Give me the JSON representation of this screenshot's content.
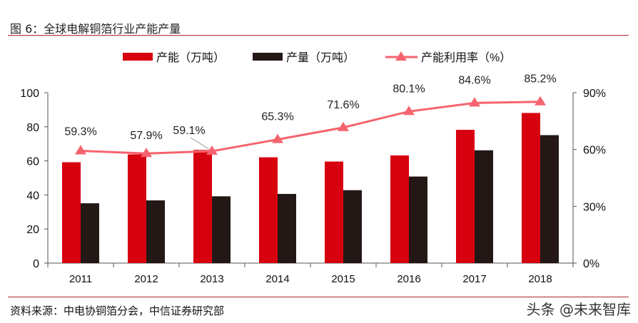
{
  "header": {
    "title": "图 6：全球电解铜箔行业产能产量"
  },
  "footer": {
    "source": "资料来源：中电协铜箔分会，中信证券研究部",
    "watermark": "头条 @未来智库"
  },
  "chart_data": {
    "type": "bar+line",
    "categories": [
      "2011",
      "2012",
      "2013",
      "2014",
      "2015",
      "2016",
      "2017",
      "2018"
    ],
    "series": [
      {
        "name": "产能（万吨）",
        "type": "bar",
        "axis": "left",
        "color": "#d7000f",
        "values": [
          59.2,
          63.8,
          66.4,
          62.1,
          59.6,
          63.2,
          78.2,
          88.1
        ]
      },
      {
        "name": "产量（万吨）",
        "type": "bar",
        "axis": "left",
        "color": "#231815",
        "values": [
          35.1,
          36.8,
          39.2,
          40.6,
          42.8,
          50.8,
          66.2,
          75.1
        ]
      },
      {
        "name": "产能利用率（%）",
        "type": "line",
        "axis": "right",
        "marker": "triangle",
        "color": "#f5646e",
        "values": [
          59.3,
          57.9,
          59.1,
          65.3,
          71.6,
          80.1,
          84.6,
          85.2
        ],
        "labels": [
          "59.3%",
          "57.9%",
          "59.1%",
          "65.3%",
          "71.6%",
          "80.1%",
          "84.6%",
          "85.2%"
        ]
      }
    ],
    "left_axis": {
      "ylim": [
        0,
        100
      ],
      "ticks": [
        "0",
        "20",
        "40",
        "60",
        "80",
        "100"
      ]
    },
    "right_axis": {
      "ylim": [
        0,
        90
      ],
      "ticks": [
        "0%",
        "30%",
        "60%",
        "90%"
      ]
    },
    "legend_position": "top-center",
    "grid": false
  }
}
